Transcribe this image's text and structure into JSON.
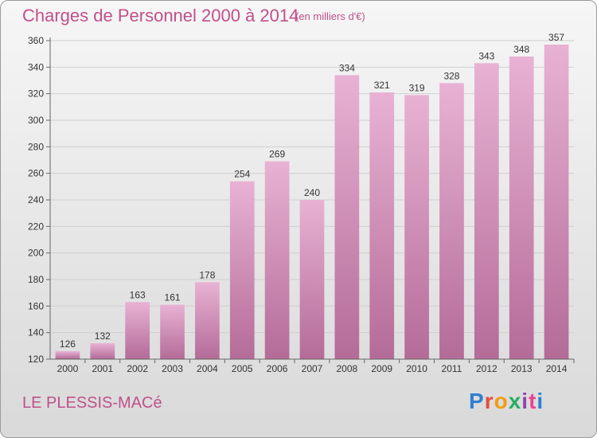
{
  "header": {
    "title": "Charges de Personnel 2000 à 2014",
    "subtitle": "(en milliers d'€)"
  },
  "footer": {
    "city": "LE PLESSIS-MACé",
    "logo": [
      "P",
      "r",
      "o",
      "x",
      "i",
      "t",
      "i"
    ]
  },
  "colors": {
    "accent": "#c0508a",
    "bar_top": "#e8b2d4",
    "bar_bottom": "#b46b98"
  },
  "chart_data": {
    "type": "bar",
    "categories": [
      "2000",
      "2001",
      "2002",
      "2003",
      "2004",
      "2005",
      "2006",
      "2007",
      "2008",
      "2009",
      "2010",
      "2011",
      "2012",
      "2013",
      "2014"
    ],
    "values": [
      126,
      132,
      163,
      161,
      178,
      254,
      269,
      240,
      334,
      321,
      319,
      328,
      343,
      348,
      357
    ],
    "title": "Charges de Personnel 2000 à 2014",
    "xlabel": "",
    "ylabel": "",
    "ylim": [
      120,
      360
    ],
    "yticks": [
      120,
      140,
      160,
      180,
      200,
      220,
      240,
      260,
      280,
      300,
      320,
      340,
      360
    ],
    "grid": true,
    "legend": "none"
  }
}
